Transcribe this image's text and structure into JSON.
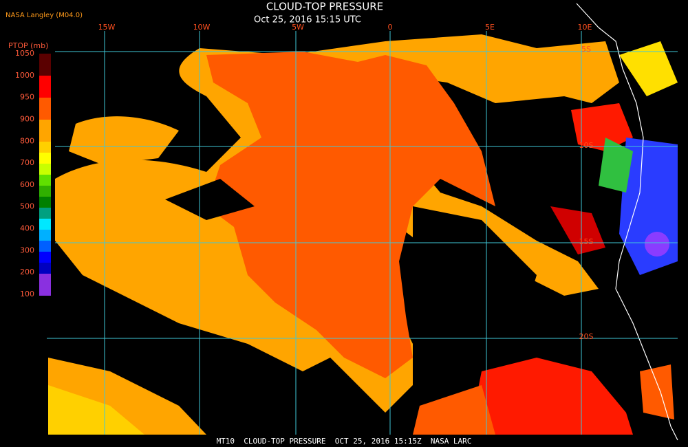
{
  "header": {
    "source": "NASA Langley (M04.0)",
    "title": "CLOUD-TOP PRESSURE",
    "timestamp": "Oct 25, 2016 15:15 UTC"
  },
  "legend": {
    "title": "PTOP (mb)",
    "labels": [
      "1050",
      "1000",
      "950",
      "900",
      "800",
      "700",
      "600",
      "500",
      "400",
      "300",
      "200",
      "100"
    ]
  },
  "grid": {
    "longitudes": [
      "15W",
      "10W",
      "5W",
      "0",
      "5E",
      "10E"
    ],
    "latitudes": [
      "5S",
      "10S",
      "15S",
      "20S"
    ]
  },
  "footer": {
    "caption": "MT10  CLOUD-TOP PRESSURE  OCT 25, 2016 15:15Z  NASA LARC"
  }
}
